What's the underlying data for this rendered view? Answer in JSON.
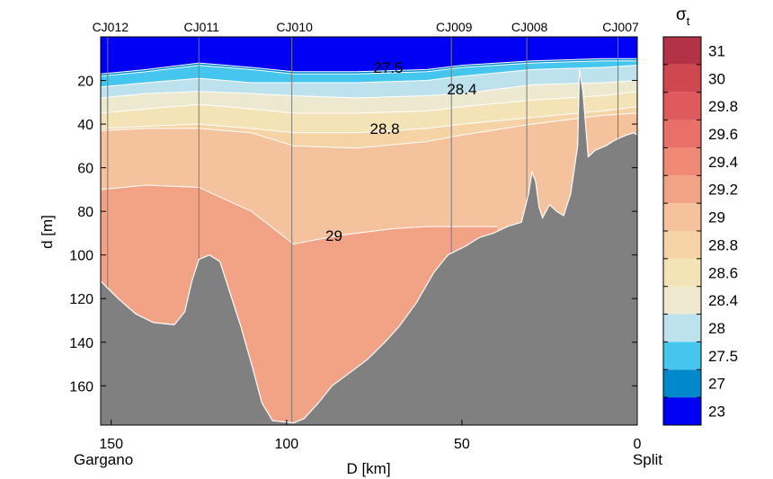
{
  "chart_data": {
    "type": "section-contour",
    "xlabel": "D [km]",
    "ylabel": "d [m]",
    "xlim": [
      153,
      0
    ],
    "ylim": [
      0,
      178
    ],
    "x_ticks": [
      150,
      100,
      50,
      0
    ],
    "y_ticks": [
      20,
      40,
      60,
      80,
      100,
      120,
      140,
      160
    ],
    "endpoint_labels": {
      "left": "Gargano",
      "right": "Split"
    },
    "stations": [
      {
        "name": "CJ012",
        "x": 151
      },
      {
        "name": "CJ011",
        "x": 125
      },
      {
        "name": "CJ010",
        "x": 98.5
      },
      {
        "name": "CJ009",
        "x": 53
      },
      {
        "name": "CJ008",
        "x": 31.5
      },
      {
        "name": "CJ007",
        "x": 5.5
      }
    ],
    "layers": [
      {
        "sigma": "23",
        "color": "#0000f5",
        "surface": [
          [
            153,
            0
          ],
          [
            0,
            0
          ]
        ]
      },
      {
        "sigma": "27",
        "color": "#0088cc",
        "surface": [
          [
            153,
            17
          ],
          [
            140,
            15
          ],
          [
            125,
            12
          ],
          [
            110,
            14
          ],
          [
            98,
            16
          ],
          [
            80,
            16
          ],
          [
            60,
            15
          ],
          [
            50,
            13
          ],
          [
            30,
            11
          ],
          [
            10,
            10
          ],
          [
            0,
            10
          ]
        ]
      },
      {
        "sigma": "27.5",
        "color": "#45c6ee",
        "surface": [
          [
            153,
            18
          ],
          [
            140,
            16
          ],
          [
            125,
            13
          ],
          [
            110,
            15
          ],
          [
            98,
            17
          ],
          [
            80,
            17
          ],
          [
            60,
            16
          ],
          [
            50,
            14
          ],
          [
            30,
            12
          ],
          [
            10,
            11
          ],
          [
            0,
            11
          ]
        ]
      },
      {
        "sigma": "28",
        "color": "#bde2ee",
        "surface": [
          [
            153,
            23
          ],
          [
            140,
            21
          ],
          [
            125,
            19
          ],
          [
            110,
            21
          ],
          [
            98,
            21
          ],
          [
            80,
            21
          ],
          [
            60,
            20
          ],
          [
            50,
            18
          ],
          [
            30,
            15
          ],
          [
            10,
            14
          ],
          [
            0,
            13
          ]
        ]
      },
      {
        "sigma": "28.4",
        "color": "#ece9cf",
        "surface": [
          [
            153,
            28
          ],
          [
            140,
            26
          ],
          [
            125,
            25
          ],
          [
            110,
            26
          ],
          [
            98,
            27
          ],
          [
            80,
            28
          ],
          [
            60,
            27
          ],
          [
            50,
            26
          ],
          [
            30,
            22
          ],
          [
            10,
            21
          ],
          [
            0,
            20
          ]
        ]
      },
      {
        "sigma": "28.6",
        "color": "#f5e3b8",
        "surface": [
          [
            153,
            35
          ],
          [
            140,
            33
          ],
          [
            125,
            31
          ],
          [
            110,
            33
          ],
          [
            98,
            35
          ],
          [
            80,
            35
          ],
          [
            60,
            34
          ],
          [
            50,
            32
          ],
          [
            30,
            29
          ],
          [
            10,
            27
          ],
          [
            0,
            25
          ]
        ]
      },
      {
        "sigma": "28.8",
        "color": "#f5d3a5",
        "surface": [
          [
            153,
            42
          ],
          [
            140,
            41
          ],
          [
            125,
            40
          ],
          [
            110,
            42
          ],
          [
            98,
            44
          ],
          [
            80,
            44
          ],
          [
            60,
            42
          ],
          [
            50,
            40
          ],
          [
            30,
            37
          ],
          [
            10,
            34
          ],
          [
            0,
            32
          ]
        ]
      },
      {
        "sigma": "29",
        "color": "#f4c29c",
        "surface": [
          [
            153,
            43
          ],
          [
            140,
            42
          ],
          [
            125,
            42
          ],
          [
            110,
            44
          ],
          [
            98,
            50
          ],
          [
            80,
            51
          ],
          [
            60,
            48
          ],
          [
            50,
            45
          ],
          [
            30,
            40
          ],
          [
            10,
            36
          ],
          [
            0,
            35
          ]
        ]
      },
      {
        "sigma": "29.2",
        "color": "#f2a385",
        "surface": [
          [
            153,
            70
          ],
          [
            140,
            68
          ],
          [
            125,
            69
          ],
          [
            110,
            80
          ],
          [
            98,
            95
          ],
          [
            85,
            91
          ],
          [
            70,
            88
          ],
          [
            60,
            87
          ],
          [
            50,
            87
          ],
          [
            40,
            87
          ]
        ]
      }
    ],
    "bathymetry": [
      [
        153,
        112
      ],
      [
        148,
        120
      ],
      [
        143,
        127
      ],
      [
        138,
        131
      ],
      [
        132,
        132
      ],
      [
        129,
        126
      ],
      [
        127,
        112
      ],
      [
        125,
        102
      ],
      [
        122,
        100
      ],
      [
        119,
        103
      ],
      [
        116,
        118
      ],
      [
        113,
        133
      ],
      [
        110,
        150
      ],
      [
        107,
        168
      ],
      [
        104,
        176
      ],
      [
        98,
        177
      ],
      [
        95,
        175
      ],
      [
        91,
        168
      ],
      [
        87,
        160
      ],
      [
        82,
        154
      ],
      [
        77,
        148
      ],
      [
        72,
        140
      ],
      [
        68,
        133
      ],
      [
        63,
        122
      ],
      [
        58,
        108
      ],
      [
        54,
        100
      ],
      [
        49,
        96
      ],
      [
        45,
        92
      ],
      [
        41,
        90
      ],
      [
        37,
        87
      ],
      [
        33,
        85
      ],
      [
        31,
        72
      ],
      [
        30,
        62
      ],
      [
        29,
        66
      ],
      [
        28,
        78
      ],
      [
        27,
        83
      ],
      [
        25,
        77
      ],
      [
        23,
        80
      ],
      [
        21,
        82
      ],
      [
        19,
        72
      ],
      [
        17,
        50
      ],
      [
        16.5,
        15
      ],
      [
        15.5,
        25
      ],
      [
        14,
        55
      ],
      [
        12,
        52
      ],
      [
        9,
        50
      ],
      [
        6,
        47
      ],
      [
        3,
        45
      ],
      [
        1,
        44
      ],
      [
        0,
        45
      ]
    ],
    "contour_labels": [
      {
        "text": "27.5",
        "x": 71,
        "y": 14
      },
      {
        "text": "28.4",
        "x": 50,
        "y": 24
      },
      {
        "text": "28.8",
        "x": 72,
        "y": 42
      },
      {
        "text": "29",
        "x": 86.5,
        "y": 91
      }
    ],
    "colorbar": {
      "title": "σt",
      "title_main": "σ",
      "title_sub": "t",
      "levels": [
        "23",
        "27",
        "27.5",
        "28",
        "28.4",
        "28.6",
        "28.8",
        "29",
        "29.2",
        "29.4",
        "29.6",
        "29.8",
        "30",
        "31"
      ],
      "colors": [
        "#0000f5",
        "#0088cc",
        "#45c6ee",
        "#bde2ee",
        "#ece9cf",
        "#f5e3b8",
        "#f5d3a5",
        "#f4c29c",
        "#f2a385",
        "#f08a76",
        "#e97068",
        "#df5a5c",
        "#cf474f",
        "#b33245"
      ]
    },
    "colors": {
      "bathymetry": "#808080",
      "station_line": "#7a7a7a",
      "contour_line": "#ffffff"
    }
  }
}
